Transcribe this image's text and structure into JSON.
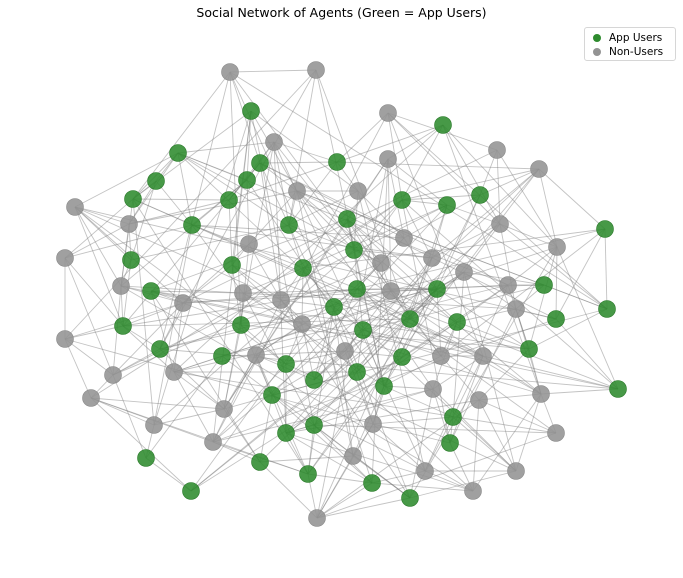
{
  "title": "Social Network of Agents (Green = App Users)",
  "legend": [
    {
      "label": "App Users",
      "color": "#2e8b2e"
    },
    {
      "label": "Non-Users",
      "color": "#939393"
    }
  ],
  "colors": {
    "app_user": "#2e8b2e",
    "non_user": "#939393",
    "edge": "#7a7a7a"
  },
  "nodes": {
    "app_users": 45,
    "non_users": 56
  }
}
